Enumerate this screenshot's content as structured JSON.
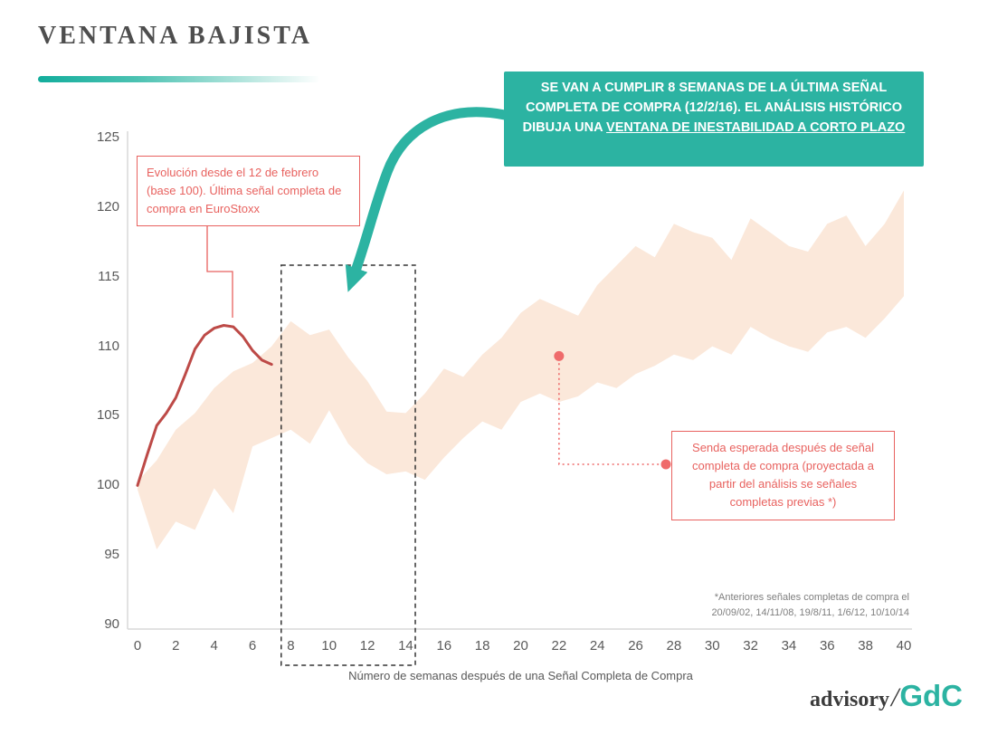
{
  "page": {
    "title": "VENTANA BAJISTA"
  },
  "callout": {
    "text_main": "SE VAN A CUMPLIR 8 SEMANAS DE LA ÚLTIMA SEÑAL COMPLETA DE COMPRA (12/2/16). EL ANÁLISIS HISTÓRICO DIBUJA UNA ",
    "text_underlined": "VENTANA DE INESTABILIDAD A CORTO PLAZO",
    "bg_color": "#2cb3a2"
  },
  "annotations": {
    "evolution_note": "Evolución desde el 12 de febrero (base 100). Última señal completa de compra en EuroStoxx",
    "expected_path_note": "Senda esperada después de señal completa de compra (proyectada a partir del análisis se señales completas previas *)",
    "footnote_line1": "*Anteriores señales completas de compra el",
    "footnote_line2": "20/09/02, 14/11/08, 19/8/11, 1/6/12, 10/10/14",
    "accent_red": "#e8625f"
  },
  "logo": {
    "advisory": "advisory",
    "slash": "/",
    "gdc": "GdC"
  },
  "chart_data": {
    "type": "area",
    "title": "VENTANA BAJISTA",
    "xlabel": "Número de semanas después de una Señal Completa de Compra",
    "ylabel": "",
    "xlim": [
      0,
      40
    ],
    "ylim": [
      90,
      125
    ],
    "x_ticks": [
      0,
      2,
      4,
      6,
      8,
      10,
      12,
      14,
      16,
      18,
      20,
      22,
      24,
      26,
      28,
      30,
      32,
      34,
      36,
      38,
      40
    ],
    "y_ticks": [
      90,
      95,
      100,
      105,
      110,
      115,
      120,
      125
    ],
    "grid": false,
    "band": {
      "name": "Senda esperada después de señal completa de compra (banda proyectada)",
      "fill": "#fbe8da",
      "x": [
        0,
        1,
        2,
        3,
        4,
        5,
        6,
        7,
        8,
        9,
        10,
        11,
        12,
        13,
        14,
        15,
        16,
        17,
        18,
        19,
        20,
        21,
        22,
        23,
        24,
        25,
        26,
        27,
        28,
        29,
        30,
        31,
        32,
        33,
        34,
        35,
        36,
        37,
        38,
        39,
        40
      ],
      "upper": [
        100.3,
        101.8,
        104.0,
        105.2,
        107.0,
        108.2,
        108.8,
        110.0,
        111.8,
        110.8,
        111.2,
        109.2,
        107.5,
        105.3,
        105.2,
        106.6,
        108.4,
        107.8,
        109.4,
        110.6,
        112.4,
        113.4,
        112.8,
        112.2,
        114.4,
        115.8,
        117.2,
        116.4,
        118.8,
        118.2,
        117.8,
        116.2,
        119.2,
        118.2,
        117.2,
        116.8,
        118.8,
        119.4,
        117.2,
        118.8,
        121.2
      ],
      "lower": [
        99.7,
        95.4,
        97.4,
        96.8,
        99.8,
        98.0,
        102.8,
        103.4,
        104.0,
        103.0,
        105.4,
        103.0,
        101.6,
        100.8,
        101.0,
        100.4,
        102.0,
        103.4,
        104.6,
        104.0,
        106.0,
        106.6,
        106.0,
        106.4,
        107.4,
        107.0,
        108.0,
        108.6,
        109.4,
        109.0,
        110.0,
        109.4,
        111.4,
        110.6,
        110.0,
        109.6,
        111.0,
        111.4,
        110.6,
        112.0,
        113.6
      ]
    },
    "line": {
      "name": "Evolución desde el 12 de febrero (base 100), EuroStoxx",
      "color": "#bd4a47",
      "x": [
        0,
        0.5,
        1,
        1.5,
        2,
        2.5,
        3,
        3.5,
        4,
        4.5,
        5,
        5.5,
        6,
        6.5,
        7
      ],
      "values": [
        100,
        102.2,
        104.3,
        105.2,
        106.3,
        108.0,
        109.8,
        110.8,
        111.3,
        111.5,
        111.4,
        110.7,
        109.7,
        109.0,
        108.7
      ]
    },
    "marker": {
      "x": 22,
      "value": 109.3,
      "color": "#ef6b6b"
    },
    "highlight_window": {
      "x_start": 8,
      "x_end": 14,
      "label": "VENTANA DE INESTABILIDAD A CORTO PLAZO"
    }
  }
}
